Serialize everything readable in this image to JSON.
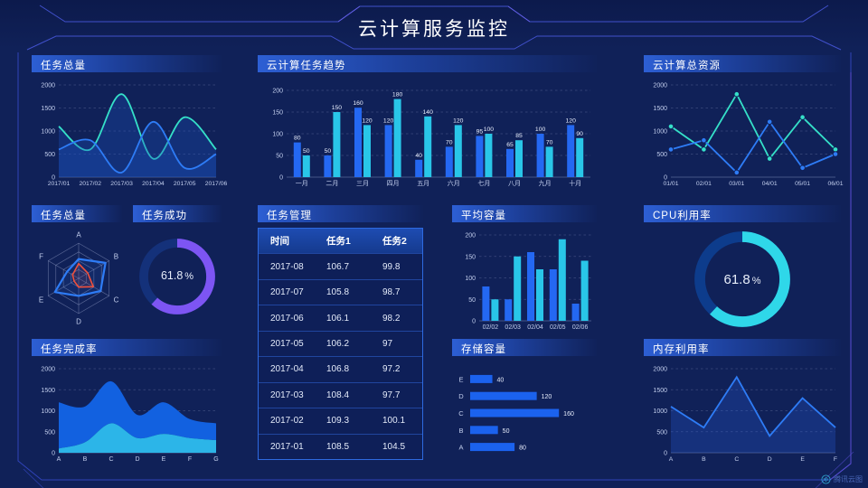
{
  "page": {
    "title": "云计算服务监控",
    "watermark": "腾讯云图"
  },
  "colors": {
    "background": "#102158",
    "accent_blue": "#2468f2",
    "accent_cyan": "#29c6e8",
    "accent_teal": "#35e0c8",
    "accent_purple": "#7d55f3",
    "accent_red": "#f0503c",
    "axis_text": "#c3cfee",
    "panel_header": "#2d5fd4",
    "border_line": "#3346c2"
  },
  "panels": {
    "tasks_total_line": {
      "title": "任务总量"
    },
    "task_trend": {
      "title": "云计算任务趋势"
    },
    "total_resources": {
      "title": "云计算总资源"
    },
    "tasks_total_radar": {
      "title": "任务总量"
    },
    "task_success": {
      "title": "任务成功",
      "value": "61.8",
      "unit": "%"
    },
    "task_management": {
      "title": "任务管理"
    },
    "avg_capacity": {
      "title": "平均容量"
    },
    "cpu_usage": {
      "title": "CPU利用率",
      "value": "61.8",
      "unit": "%"
    },
    "completion_rate": {
      "title": "任务完成率"
    },
    "storage_capacity": {
      "title": "存储容量"
    },
    "memory_usage": {
      "title": "内存利用率"
    }
  },
  "table": {
    "headers": [
      "时间",
      "任务1",
      "任务2"
    ],
    "rows": [
      [
        "2017-08",
        "106.7",
        "99.8"
      ],
      [
        "2017-07",
        "105.8",
        "98.7"
      ],
      [
        "2017-06",
        "106.1",
        "98.2"
      ],
      [
        "2017-05",
        "106.2",
        "97"
      ],
      [
        "2017-04",
        "106.8",
        "97.2"
      ],
      [
        "2017-03",
        "108.4",
        "97.7"
      ],
      [
        "2017-02",
        "109.3",
        "100.1"
      ],
      [
        "2017-01",
        "108.5",
        "104.5"
      ]
    ]
  },
  "chart_data": {
    "tasks_total": {
      "type": "line",
      "smooth": true,
      "title": "任务总量",
      "x": [
        "2017/01",
        "2017/02",
        "2017/03",
        "2017/04",
        "2017/05",
        "2017/06"
      ],
      "series": [
        {
          "name": "series-teal",
          "color": "#35e0c8",
          "fill": "rgba(28,80,190,0.32)",
          "values": [
            1100,
            600,
            1800,
            400,
            1300,
            600
          ]
        },
        {
          "name": "series-blue",
          "color": "#2e7cf6",
          "fill": "rgba(28,80,190,0.32)",
          "values": [
            600,
            800,
            100,
            1200,
            200,
            500
          ]
        }
      ],
      "ylim": [
        0,
        2000
      ],
      "yticks": [
        0,
        500,
        1000,
        1500,
        2000
      ]
    },
    "task_trend": {
      "type": "bar",
      "title": "云计算任务趋势",
      "value_labels": true,
      "categories": [
        "一月",
        "二月",
        "三月",
        "四月",
        "五月",
        "六月",
        "七月",
        "八月",
        "九月",
        "十月"
      ],
      "series": [
        {
          "name": "任务1",
          "color": "#2468f2",
          "values": [
            80,
            50,
            160,
            120,
            40,
            70,
            95,
            65,
            100,
            120
          ]
        },
        {
          "name": "任务2",
          "color": "#29c6e8",
          "values": [
            50,
            150,
            120,
            180,
            140,
            120,
            100,
            85,
            70,
            90
          ]
        }
      ],
      "ylim": [
        0,
        200
      ],
      "yticks": [
        0,
        50,
        100,
        150,
        200
      ]
    },
    "total_resources": {
      "type": "line",
      "smooth": false,
      "markers": true,
      "title": "云计算总资源",
      "x": [
        "01/01",
        "02/01",
        "03/01",
        "04/01",
        "05/01",
        "06/01"
      ],
      "series": [
        {
          "name": "series-teal",
          "color": "#35e0c8",
          "values": [
            1100,
            600,
            1800,
            400,
            1300,
            600
          ]
        },
        {
          "name": "series-blue",
          "color": "#2e7cf6",
          "values": [
            600,
            800,
            100,
            1200,
            200,
            500
          ]
        }
      ],
      "ylim": [
        0,
        2000
      ],
      "yticks": [
        0,
        500,
        1000,
        1500,
        2000
      ]
    },
    "tasks_radar": {
      "type": "radar",
      "title": "任务总量",
      "max": 100,
      "axes": [
        "A",
        "B",
        "C",
        "D",
        "E",
        "F"
      ],
      "series": [
        {
          "name": "blue",
          "color": "#2e7cf6",
          "values": [
            55,
            88,
            72,
            50,
            78,
            38
          ]
        },
        {
          "name": "red",
          "color": "#f0503c",
          "values": [
            42,
            30,
            48,
            25,
            15,
            20
          ]
        }
      ]
    },
    "task_success_donut": {
      "type": "donut",
      "title": "任务成功",
      "percent": 61.8,
      "color": "#7d55f3",
      "track": "#14317a"
    },
    "avg_capacity": {
      "type": "bar",
      "title": "平均容量",
      "value_labels": false,
      "categories": [
        "02/02",
        "02/03",
        "02/04",
        "02/05",
        "02/06"
      ],
      "series": [
        {
          "name": "series1",
          "color": "#2468f2",
          "values": [
            80,
            50,
            160,
            120,
            40
          ]
        },
        {
          "name": "series2",
          "color": "#29c6e8",
          "values": [
            50,
            150,
            120,
            190,
            140
          ]
        }
      ],
      "ylim": [
        0,
        200
      ],
      "yticks": [
        0,
        50,
        100,
        150,
        200
      ]
    },
    "cpu_donut": {
      "type": "donut",
      "title": "CPU利用率",
      "percent": 61.8,
      "color": "#2fd7e9",
      "track": "#0d3c8c"
    },
    "completion_rate": {
      "type": "area-stacked",
      "smooth": true,
      "title": "任务完成率",
      "x": [
        "A",
        "B",
        "C",
        "D",
        "E",
        "F",
        "G"
      ],
      "series": [
        {
          "name": "upper-blue",
          "color": "#1261e0",
          "values": [
            1200,
            1100,
            1700,
            900,
            1200,
            800,
            700
          ]
        },
        {
          "name": "lower-cyan",
          "color": "#2cb5e8",
          "values": [
            100,
            250,
            700,
            350,
            450,
            350,
            300
          ]
        }
      ],
      "ylim": [
        0,
        2000
      ],
      "yticks": [
        0,
        500,
        1000,
        1500,
        2000
      ]
    },
    "storage_capacity": {
      "type": "hbar",
      "title": "存储容量",
      "color": "#1b62ee",
      "xmax": 176,
      "categories": [
        "E",
        "D",
        "C",
        "B",
        "A"
      ],
      "values": [
        40,
        120,
        160,
        50,
        80
      ]
    },
    "memory_usage": {
      "type": "line",
      "smooth": false,
      "title": "内存利用率",
      "x": [
        "A",
        "B",
        "C",
        "D",
        "E",
        "F"
      ],
      "series": [
        {
          "name": "blue",
          "color": "#2e7cf6",
          "fill": "rgba(40,100,230,0.25)",
          "values": [
            1100,
            600,
            1800,
            400,
            1300,
            600
          ]
        }
      ],
      "ylim": [
        0,
        2000
      ],
      "yticks": [
        0,
        500,
        1000,
        1500,
        2000
      ]
    }
  }
}
